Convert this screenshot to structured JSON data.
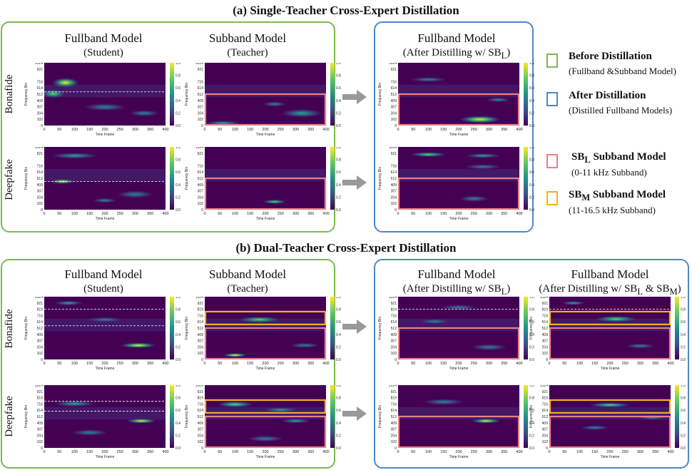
{
  "figure": {
    "section_a_title": "(a) Single-Teacher Cross-Expert Distillation",
    "section_b_title": "(b) Dual-Teacher Cross-Expert Distillation",
    "row_bonafide": "Bonafide",
    "row_deepfake": "Deepfake",
    "fullband_model": "Fullband Model",
    "subband_model": "Subband Model",
    "student": "(Student)",
    "teacher": "(Teacher)",
    "after_sbl_prefix": "(After Distilling w/ SB",
    "after_sbl_sub": "L",
    "after_suffix": ")",
    "after_both_mid": " & SB",
    "after_both_sub": "M",
    "axis_xlabel": "Time Frame",
    "axis_ylabel": "Frequency Bin"
  },
  "legend": {
    "before_title": "Before Distillation",
    "before_desc": "(Fullband &Subband Model)",
    "after_title": "After Distillation",
    "after_desc": "(Distilled Fullband Models)",
    "sbl_prefix": "SB",
    "sbl_sub": "L",
    "sbl_suffix": " Subband Model",
    "sbl_desc": "(0-11 kHz Subband)",
    "sbm_prefix": "SB",
    "sbm_sub": "M",
    "sbm_suffix": " Subband Model",
    "sbm_desc": "(11-16.5 kHz Subband)"
  },
  "colors": {
    "green_box": "#7aba4f",
    "blue_box": "#4f88c6",
    "pink_box": "#ec7f86",
    "yellow_box": "#f2b318",
    "arrow": "#999999"
  },
  "chart_data": {
    "type": "heatmap",
    "xlabel": "Time Frame",
    "ylabel": "Frequency Bin",
    "x_ticks": [
      0,
      50,
      100,
      150,
      200,
      250,
      300,
      350,
      400
    ],
    "y_ticks_a": [
      0,
      102,
      204,
      307,
      409,
      512,
      614,
      716,
      921,
      1024
    ],
    "y_ticks_b": [
      0,
      102,
      204,
      307,
      409,
      512,
      614,
      716,
      819,
      921,
      1024
    ],
    "xlim": [
      0,
      400
    ],
    "ylim": [
      0,
      1024
    ],
    "colorbar_ticks": [
      "0.0",
      "0.2",
      "0.4",
      "0.6",
      "0.8",
      "1.0"
    ],
    "colormap": "viridis"
  }
}
